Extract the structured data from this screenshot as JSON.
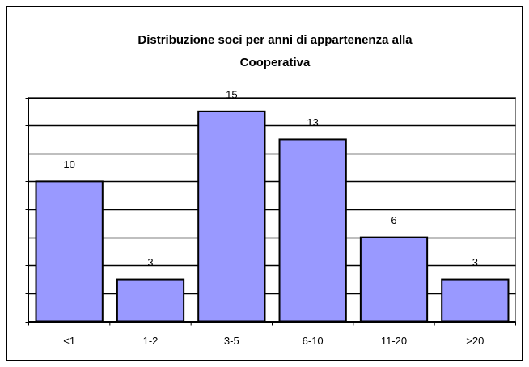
{
  "chart_data": {
    "type": "bar",
    "title": "Distribuzione soci per anni di appartenenza alla Cooperativa",
    "categories": [
      "<1",
      "1-2",
      "3-5",
      "6-10",
      "11-20",
      ">20"
    ],
    "values": [
      10,
      3,
      15,
      13,
      6,
      3
    ],
    "color": "#9999ff",
    "ylim": [
      0,
      16
    ],
    "yticks": [
      0,
      2,
      4,
      6,
      8,
      10,
      12,
      14,
      16
    ],
    "grid": true
  }
}
